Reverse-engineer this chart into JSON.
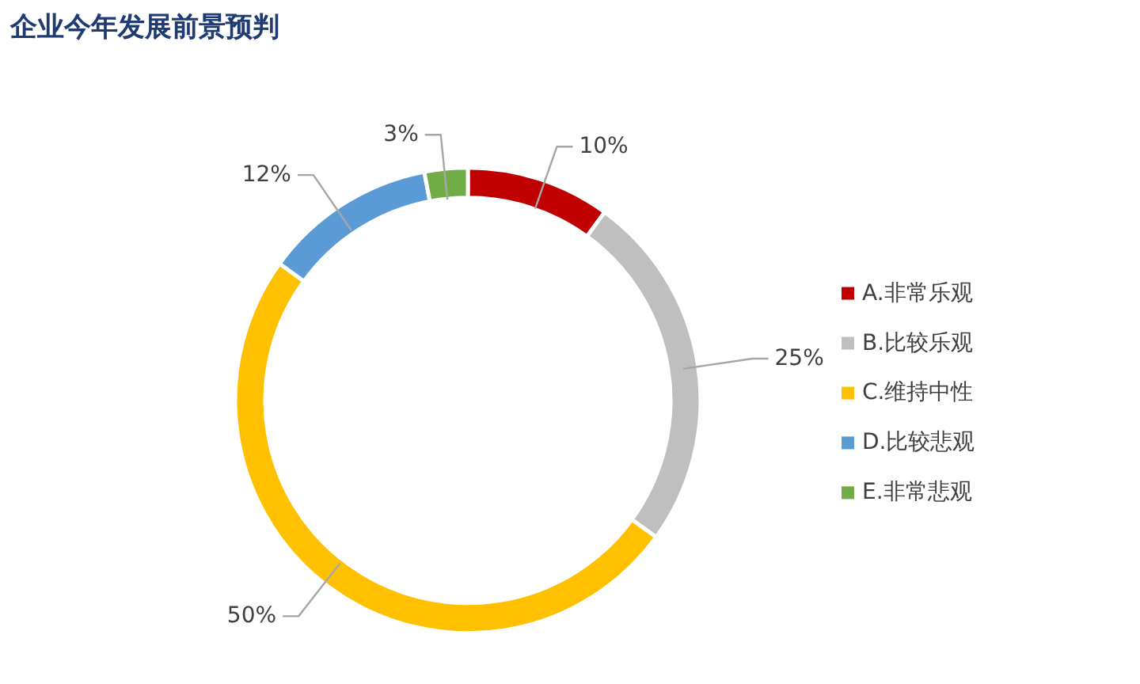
{
  "chart_data": {
    "type": "donut",
    "title": "企业今年发展前景预判",
    "categories": [
      "A.非常乐观",
      "B.比较乐观",
      "C.维持中性",
      "D.比较悲观",
      "E.非常悲观"
    ],
    "values": [
      10,
      25,
      50,
      12,
      3
    ],
    "colors": [
      "#c00000",
      "#bfbfbf",
      "#ffc000",
      "#5b9bd5",
      "#70ad47"
    ],
    "value_labels": [
      "10%",
      "25%",
      "50%",
      "12%",
      "3%"
    ],
    "legend": "right"
  }
}
